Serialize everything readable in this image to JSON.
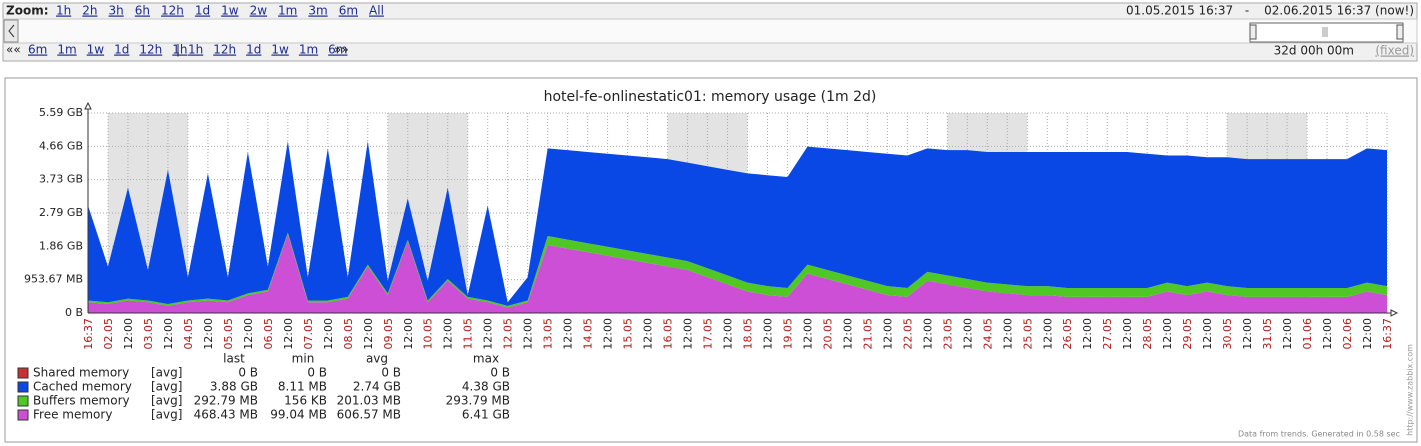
{
  "zoom_bar": {
    "zoom_label": "Zoom:",
    "zoom_links": [
      "1h",
      "2h",
      "3h",
      "6h",
      "12h",
      "1d",
      "1w",
      "2w",
      "1m",
      "3m",
      "6m",
      "All"
    ],
    "date_from": "01.05.2015 16:37",
    "date_separator": "-",
    "date_to": "02.06.2015 16:37 (now!)",
    "back_arrow": "««",
    "back_links": [
      "6m",
      "1m",
      "1w",
      "1d",
      "12h",
      "1h"
    ],
    "divider": "|",
    "forward_links": [
      "1h",
      "12h",
      "1d",
      "1w",
      "1m",
      "6m"
    ],
    "forward_arrow": "»»",
    "period": "32d 00h 00m",
    "period_mode": "(fixed)"
  },
  "chart_data": {
    "type": "stacked-area",
    "title": "hotel-fe-onlinestatic01: memory usage  (1m 2d)",
    "categories": [
      "16:37",
      "02.05",
      "12:00",
      "03.05",
      "12:00",
      "04.05",
      "12:00",
      "05.05",
      "12:00",
      "06.05",
      "12:00",
      "07.05",
      "12:00",
      "08.05",
      "12:00",
      "09.05",
      "12:00",
      "10.05",
      "12:00",
      "11.05",
      "12:00",
      "12.05",
      "12:00",
      "13.05",
      "12:00",
      "14.05",
      "12:00",
      "15.05",
      "12:00",
      "16.05",
      "12:00",
      "17.05",
      "12:00",
      "18.05",
      "12:00",
      "19.05",
      "12:00",
      "20.05",
      "12:00",
      "21.05",
      "12:00",
      "22.05",
      "12:00",
      "23.05",
      "12:00",
      "24.05",
      "12:00",
      "25.05",
      "12:00",
      "26.05",
      "12:00",
      "27.05",
      "12:00",
      "28.05",
      "12:00",
      "29.05",
      "12:00",
      "30.05",
      "12:00",
      "31.05",
      "12:00",
      "01.06",
      "12:00",
      "02.06",
      "12:00",
      "16:37"
    ],
    "ylim": [
      0,
      5.5879
    ],
    "yticks": [
      {
        "value": 0,
        "label": "0 B"
      },
      {
        "value": 0.9313,
        "label": "953.67 MB"
      },
      {
        "value": 1.8626,
        "label": "1.86 GB"
      },
      {
        "value": 2.794,
        "label": "2.79 GB"
      },
      {
        "value": 3.7253,
        "label": "3.73 GB"
      },
      {
        "value": 4.6566,
        "label": "4.66 GB"
      },
      {
        "value": 5.5879,
        "label": "5.59 GB"
      }
    ],
    "grid": true,
    "stat_columns": [
      "last",
      "min",
      "avg",
      "max"
    ],
    "series": [
      {
        "name": "Shared memory",
        "color": "#c83232",
        "function": "[avg]",
        "stats": [
          "0 B",
          "0 B",
          "0 B",
          "0 B"
        ],
        "values": [
          0,
          0,
          0,
          0,
          0,
          0,
          0,
          0,
          0,
          0,
          0,
          0,
          0,
          0,
          0,
          0,
          0,
          0,
          0,
          0,
          0,
          0,
          0,
          0,
          0,
          0,
          0,
          0,
          0,
          0,
          0,
          0,
          0,
          0,
          0,
          0,
          0,
          0,
          0,
          0,
          0,
          0,
          0,
          0,
          0,
          0,
          0,
          0,
          0,
          0,
          0,
          0,
          0,
          0,
          0,
          0,
          0,
          0,
          0,
          0,
          0,
          0,
          0,
          0,
          0,
          0
        ]
      },
      {
        "name": "Cached memory",
        "color": "#0a48e6",
        "function": "[avg]",
        "stats": [
          "3.88 GB",
          "8.11 MB",
          "2.74 GB",
          "4.38 GB"
        ],
        "values": [
          2.65,
          1.0,
          3.1,
          0.85,
          3.75,
          0.65,
          3.5,
          0.65,
          3.95,
          0.65,
          2.55,
          0.65,
          4.25,
          0.55,
          3.45,
          0.35,
          1.15,
          0.55,
          2.55,
          0.05,
          2.65,
          0.1,
          0.65,
          2.45,
          2.5,
          2.55,
          2.6,
          2.65,
          2.7,
          2.75,
          2.75,
          2.85,
          2.95,
          3.05,
          3.1,
          3.1,
          3.3,
          3.4,
          3.5,
          3.6,
          3.7,
          3.7,
          3.45,
          3.5,
          3.6,
          3.65,
          3.7,
          3.75,
          3.75,
          3.8,
          3.8,
          3.8,
          3.8,
          3.75,
          3.55,
          3.65,
          3.5,
          3.6,
          3.6,
          3.6,
          3.6,
          3.6,
          3.6,
          3.6,
          3.75,
          3.8
        ]
      },
      {
        "name": "Buffers memory",
        "color": "#4fc825",
        "function": "[avg]",
        "stats": [
          "292.79 MB",
          "156 KB",
          "201.03 MB",
          "293.79 MB"
        ],
        "values": [
          0.05,
          0.05,
          0.05,
          0.05,
          0.05,
          0.05,
          0.05,
          0.05,
          0.05,
          0.05,
          0.05,
          0.05,
          0.05,
          0.05,
          0.05,
          0.05,
          0.05,
          0.05,
          0.05,
          0.05,
          0.05,
          0.05,
          0.05,
          0.25,
          0.25,
          0.25,
          0.25,
          0.25,
          0.25,
          0.25,
          0.25,
          0.25,
          0.25,
          0.25,
          0.25,
          0.25,
          0.25,
          0.25,
          0.25,
          0.25,
          0.25,
          0.25,
          0.25,
          0.25,
          0.25,
          0.25,
          0.25,
          0.25,
          0.25,
          0.25,
          0.25,
          0.25,
          0.25,
          0.25,
          0.25,
          0.25,
          0.25,
          0.25,
          0.25,
          0.25,
          0.25,
          0.25,
          0.25,
          0.25,
          0.25,
          0.25
        ]
      },
      {
        "name": "Free memory",
        "color": "#cc4fd6",
        "function": "[avg]",
        "stats": [
          "468.43 MB",
          "99.04 MB",
          "606.57 MB",
          "6.41 GB"
        ],
        "values": [
          0.3,
          0.25,
          0.35,
          0.3,
          0.2,
          0.3,
          0.35,
          0.3,
          0.5,
          0.6,
          2.2,
          0.3,
          0.3,
          0.4,
          1.3,
          0.5,
          2.0,
          0.3,
          0.9,
          0.4,
          0.3,
          0.15,
          0.3,
          1.9,
          1.8,
          1.7,
          1.6,
          1.5,
          1.4,
          1.3,
          1.2,
          1.0,
          0.8,
          0.6,
          0.5,
          0.45,
          1.1,
          0.95,
          0.8,
          0.65,
          0.5,
          0.45,
          0.9,
          0.8,
          0.7,
          0.6,
          0.55,
          0.5,
          0.5,
          0.45,
          0.45,
          0.45,
          0.45,
          0.45,
          0.6,
          0.5,
          0.6,
          0.5,
          0.45,
          0.45,
          0.45,
          0.45,
          0.45,
          0.45,
          0.6,
          0.5
        ]
      }
    ],
    "footer": "Data from trends. Generated in 0.58 sec",
    "watermark": "http://www.zabbix.com"
  }
}
